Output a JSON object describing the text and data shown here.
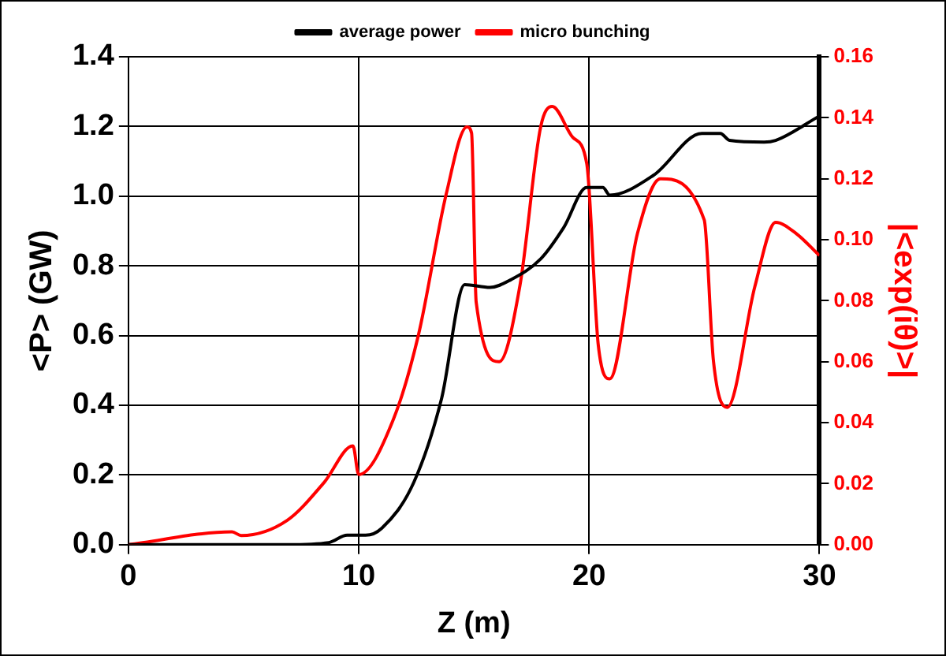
{
  "chart_data": {
    "type": "line",
    "xlabel": "Z (m)",
    "ylabel": "<P> (GW)",
    "y2label": "|<exp(iθ)>|",
    "xlim": [
      0,
      30
    ],
    "xticks": [
      0,
      10,
      20,
      30
    ],
    "ylim": [
      0,
      1.4
    ],
    "yticks": [
      {
        "value": 0,
        "label": "0.0"
      },
      0.2,
      0.4,
      0.6,
      0.8,
      {
        "value": 1,
        "label": "1.0"
      },
      1.2,
      1.4
    ],
    "y2lim": [
      0,
      0.16
    ],
    "y2ticks": [
      {
        "value": 0,
        "label": "0.00"
      },
      0.02,
      0.04,
      0.06,
      0.08,
      {
        "value": 0.1,
        "label": "0.10"
      },
      0.12,
      0.14,
      0.16
    ],
    "grid": true,
    "legend": "top",
    "marker": "none",
    "line_style": "solid",
    "series": [
      {
        "name": "average power",
        "color": "#000000",
        "x": [
          0,
          6.9,
          8.7,
          9.5,
          10.3,
          11,
          12.4,
          13.6,
          14.6,
          15.7,
          16.6,
          17.9,
          18.9,
          19.9,
          20.6,
          20.9,
          22.8,
          24.9,
          25.7,
          26.1,
          27.6,
          28.1,
          30
        ],
        "values": [
          0,
          0,
          0.006,
          0.027,
          0.027,
          0.047,
          0.18,
          0.42,
          0.746,
          0.738,
          0.76,
          0.82,
          0.91,
          1.025,
          1.025,
          1.003,
          1.06,
          1.18,
          1.18,
          1.16,
          1.155,
          1.16,
          1.23
        ]
      },
      {
        "name": "micro bunching",
        "color": "#ff0000",
        "axis": "y2",
        "x": [
          0,
          4.5,
          4.9,
          6.9,
          8.5,
          9.75,
          10.0,
          11.5,
          12.6,
          13.8,
          14.7,
          14.9,
          15.1,
          16.1,
          17.0,
          17.9,
          18.4,
          19.3,
          19.9,
          20.4,
          20.9,
          22.1,
          23.1,
          25.0,
          25.4,
          26.0,
          27.2,
          28.1,
          29.0,
          30
        ],
        "values": [
          0,
          0.0042,
          0.003,
          0.008,
          0.0204,
          0.0324,
          0.023,
          0.041,
          0.069,
          0.115,
          0.137,
          0.135,
          0.0795,
          0.06,
          0.085,
          0.137,
          0.1437,
          0.1335,
          0.125,
          0.0655,
          0.0544,
          0.102,
          0.12,
          0.1065,
          0.0603,
          0.045,
          0.0847,
          0.1057,
          0.102,
          0.0948
        ]
      }
    ]
  }
}
